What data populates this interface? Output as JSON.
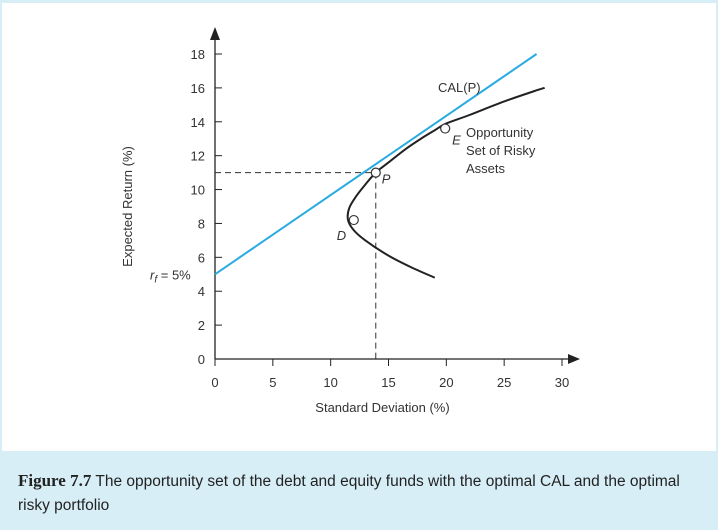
{
  "chart_data": {
    "type": "line",
    "xlabel": "Standard Deviation (%)",
    "ylabel": "Expected Return (%)",
    "xlim": [
      0,
      30
    ],
    "ylim": [
      0,
      18
    ],
    "xticks": [
      0,
      5,
      10,
      15,
      20,
      25,
      30
    ],
    "yticks": [
      0,
      2,
      4,
      6,
      8,
      10,
      12,
      14,
      16,
      18
    ],
    "grid": false,
    "series": [
      {
        "name": "CAL(P)",
        "color": "#29abe2",
        "x": [
          0,
          27.8
        ],
        "y": [
          5,
          18.0
        ]
      },
      {
        "name": "Opportunity Set of Risky Assets",
        "color": "#222222",
        "x": [
          19.0,
          17.0,
          15.0,
          13.0,
          12.0,
          11.5,
          11.6,
          12.2,
          13.0,
          13.9,
          15.0,
          16.5,
          17.8,
          19.0,
          20.0,
          22.0,
          25.0,
          28.0,
          28.5
        ],
        "y": [
          4.8,
          5.4,
          6.1,
          7.0,
          7.6,
          8.2,
          8.9,
          9.6,
          10.3,
          11.0,
          11.6,
          12.4,
          13.0,
          13.5,
          13.9,
          14.4,
          15.2,
          15.9,
          16.0
        ]
      }
    ],
    "points": [
      {
        "label": "P",
        "x": 13.9,
        "y": 11.0
      },
      {
        "label": "E",
        "x": 19.9,
        "y": 13.6
      },
      {
        "label": "D",
        "x": 12.0,
        "y": 8.2
      }
    ],
    "rf_label": "r",
    "rf_sub": "f",
    "rf_value": "= 5%",
    "cal_label": "CAL(P)",
    "opportunity_label_lines": [
      "Opportunity",
      "Set of Risky",
      "Assets"
    ]
  },
  "caption": {
    "label": "Figure 7.7",
    "text": " The opportunity set of the debt and equity funds with the optimal CAL and the optimal risky portfolio"
  }
}
